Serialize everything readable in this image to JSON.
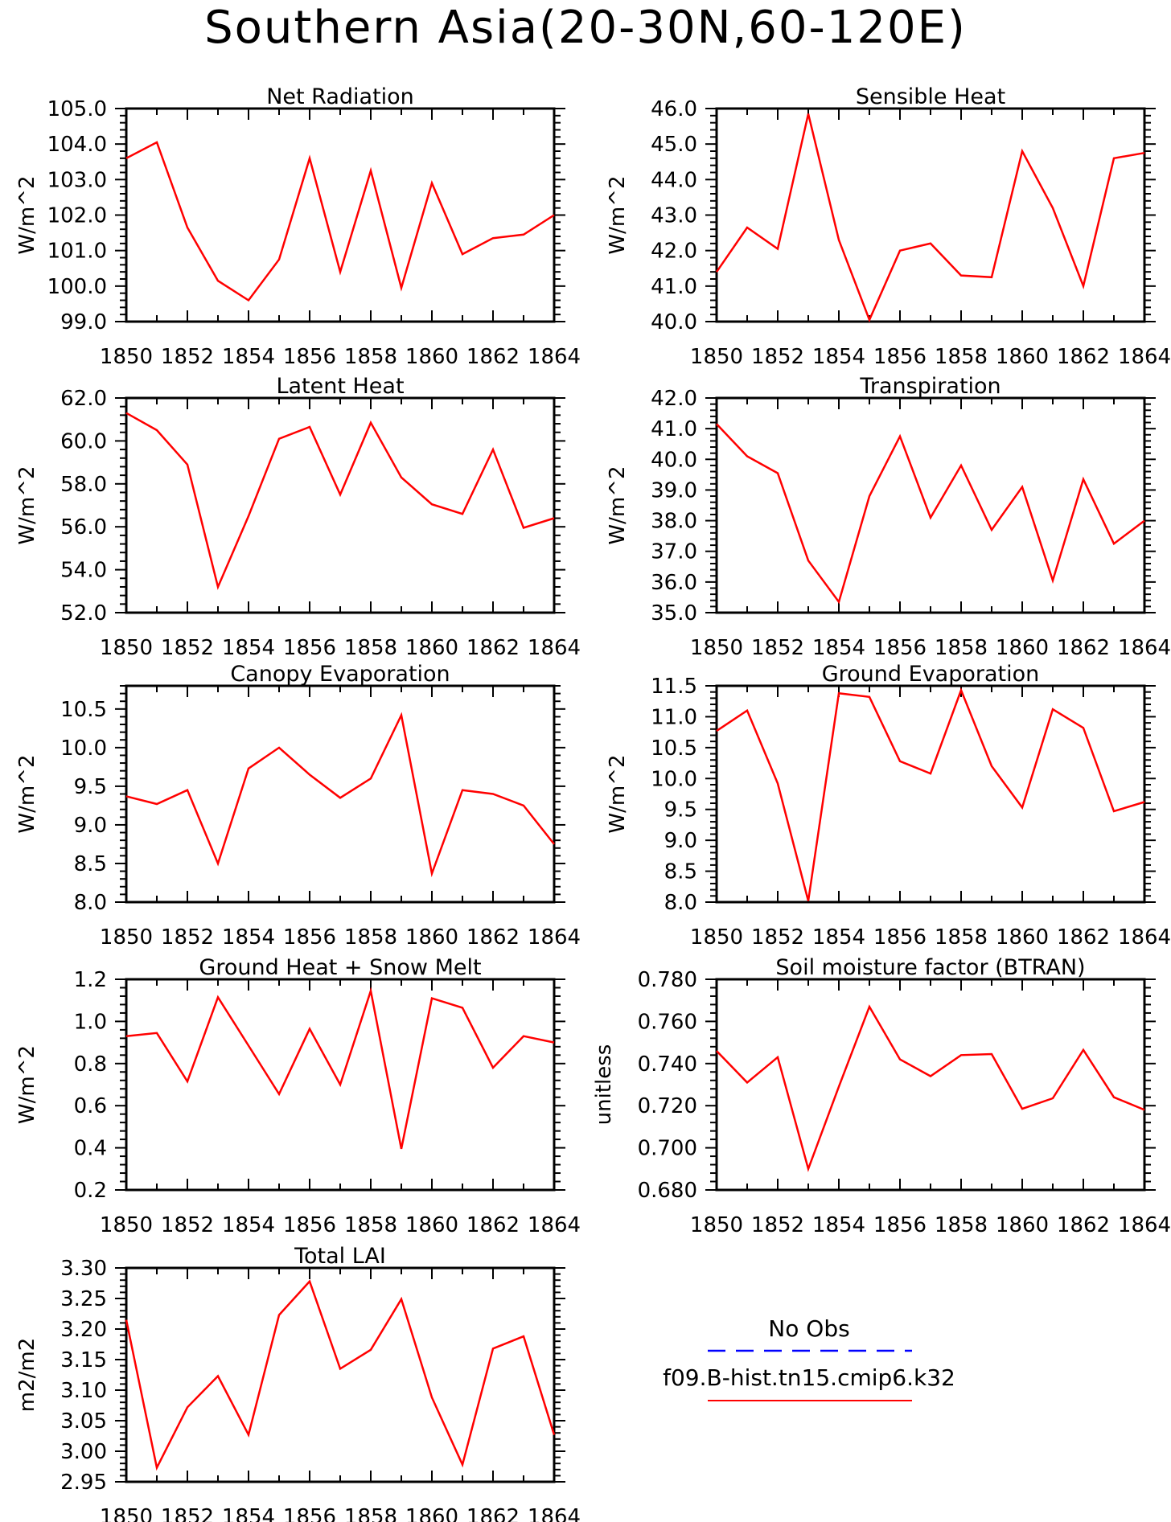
{
  "title": "Southern Asia(20-30N,60-120E)",
  "colors": {
    "series": "#ff0000",
    "obs": "#0000ff",
    "axis": "#000000"
  },
  "legend": {
    "items": [
      {
        "label": "No Obs",
        "color": "#0000ff",
        "style": "dashed"
      },
      {
        "label": "f09.B-hist.tn15.cmip6.k32",
        "color": "#ff0000",
        "style": "solid"
      }
    ]
  },
  "chart_data": [
    {
      "type": "line",
      "title": "Net Radiation",
      "ylabel": "W/m^2",
      "x": [
        1850,
        1851,
        1852,
        1853,
        1854,
        1855,
        1856,
        1857,
        1858,
        1859,
        1860,
        1861,
        1862,
        1863,
        1864
      ],
      "xlim": [
        1850,
        1864
      ],
      "xticks": [
        "1850",
        "1852",
        "1854",
        "1856",
        "1858",
        "1860",
        "1862",
        "1864"
      ],
      "ylim": [
        99.0,
        105.0
      ],
      "yticks": [
        "99.0",
        "100.0",
        "101.0",
        "102.0",
        "103.0",
        "104.0",
        "105.0"
      ],
      "series": [
        {
          "values": [
            103.6,
            104.05,
            101.65,
            100.15,
            99.6,
            100.75,
            103.6,
            100.4,
            103.25,
            99.95,
            102.9,
            100.9,
            101.35,
            101.45,
            102.0
          ]
        }
      ]
    },
    {
      "type": "line",
      "title": "Sensible Heat",
      "ylabel": "W/m^2",
      "x": [
        1850,
        1851,
        1852,
        1853,
        1854,
        1855,
        1856,
        1857,
        1858,
        1859,
        1860,
        1861,
        1862,
        1863,
        1864
      ],
      "xlim": [
        1850,
        1864
      ],
      "xticks": [
        "1850",
        "1852",
        "1854",
        "1856",
        "1858",
        "1860",
        "1862",
        "1864"
      ],
      "ylim": [
        40.0,
        46.0
      ],
      "yticks": [
        "40.0",
        "41.0",
        "42.0",
        "43.0",
        "44.0",
        "45.0",
        "46.0"
      ],
      "series": [
        {
          "values": [
            41.4,
            42.65,
            42.05,
            45.85,
            42.3,
            40.05,
            42.0,
            42.2,
            41.3,
            41.25,
            44.8,
            43.2,
            41.0,
            44.6,
            44.75
          ]
        }
      ]
    },
    {
      "type": "line",
      "title": "Latent Heat",
      "ylabel": "W/m^2",
      "x": [
        1850,
        1851,
        1852,
        1853,
        1854,
        1855,
        1856,
        1857,
        1858,
        1859,
        1860,
        1861,
        1862,
        1863,
        1864
      ],
      "xlim": [
        1850,
        1864
      ],
      "xticks": [
        "1850",
        "1852",
        "1854",
        "1856",
        "1858",
        "1860",
        "1862",
        "1864"
      ],
      "ylim": [
        52.0,
        62.0
      ],
      "yticks": [
        "52.0",
        "54.0",
        "56.0",
        "58.0",
        "60.0",
        "62.0"
      ],
      "series": [
        {
          "values": [
            61.3,
            60.5,
            58.9,
            53.2,
            56.5,
            60.1,
            60.65,
            57.5,
            60.85,
            58.3,
            57.05,
            56.6,
            59.6,
            55.95,
            56.4
          ]
        }
      ]
    },
    {
      "type": "line",
      "title": "Transpiration",
      "ylabel": "W/m^2",
      "x": [
        1850,
        1851,
        1852,
        1853,
        1854,
        1855,
        1856,
        1857,
        1858,
        1859,
        1860,
        1861,
        1862,
        1863,
        1864
      ],
      "xlim": [
        1850,
        1864
      ],
      "xticks": [
        "1850",
        "1852",
        "1854",
        "1856",
        "1858",
        "1860",
        "1862",
        "1864"
      ],
      "ylim": [
        35.0,
        42.0
      ],
      "yticks": [
        "35.0",
        "36.0",
        "37.0",
        "38.0",
        "39.0",
        "40.0",
        "41.0",
        "42.0"
      ],
      "series": [
        {
          "values": [
            41.15,
            40.1,
            39.55,
            36.7,
            35.35,
            38.8,
            40.75,
            38.1,
            39.8,
            37.7,
            39.1,
            36.05,
            39.35,
            37.25,
            38.0
          ]
        }
      ]
    },
    {
      "type": "line",
      "title": "Canopy Evaporation",
      "ylabel": "W/m^2",
      "x": [
        1850,
        1851,
        1852,
        1853,
        1854,
        1855,
        1856,
        1857,
        1858,
        1859,
        1860,
        1861,
        1862,
        1863,
        1864
      ],
      "xlim": [
        1850,
        1864
      ],
      "xticks": [
        "1850",
        "1852",
        "1854",
        "1856",
        "1858",
        "1860",
        "1862",
        "1864"
      ],
      "ylim": [
        8.0,
        10.8
      ],
      "yticks": [
        "8.0",
        "8.5",
        "9.0",
        "9.5",
        "10.0",
        "10.5"
      ],
      "series": [
        {
          "values": [
            9.37,
            9.27,
            9.45,
            8.5,
            9.73,
            10.0,
            9.65,
            9.35,
            9.6,
            10.42,
            8.37,
            9.45,
            9.4,
            9.25,
            8.75
          ]
        }
      ]
    },
    {
      "type": "line",
      "title": "Ground Evaporation",
      "ylabel": "W/m^2",
      "x": [
        1850,
        1851,
        1852,
        1853,
        1854,
        1855,
        1856,
        1857,
        1858,
        1859,
        1860,
        1861,
        1862,
        1863,
        1864
      ],
      "xlim": [
        1850,
        1864
      ],
      "xticks": [
        "1850",
        "1852",
        "1854",
        "1856",
        "1858",
        "1860",
        "1862",
        "1864"
      ],
      "ylim": [
        8.0,
        11.5
      ],
      "yticks": [
        "8.0",
        "8.5",
        "9.0",
        "9.5",
        "10.0",
        "10.5",
        "11.0",
        "11.5"
      ],
      "series": [
        {
          "values": [
            10.77,
            11.1,
            9.92,
            8.02,
            11.38,
            11.32,
            10.28,
            10.08,
            11.43,
            10.2,
            9.53,
            11.12,
            10.82,
            9.47,
            9.62
          ]
        }
      ]
    },
    {
      "type": "line",
      "title": "Ground Heat + Snow Melt",
      "ylabel": "W/m^2",
      "x": [
        1850,
        1851,
        1852,
        1853,
        1854,
        1855,
        1856,
        1857,
        1858,
        1859,
        1860,
        1861,
        1862,
        1863,
        1864
      ],
      "xlim": [
        1850,
        1864
      ],
      "xticks": [
        "1850",
        "1852",
        "1854",
        "1856",
        "1858",
        "1860",
        "1862",
        "1864"
      ],
      "ylim": [
        0.2,
        1.2
      ],
      "yticks": [
        "0.2",
        "0.4",
        "0.6",
        "0.8",
        "1.0",
        "1.2"
      ],
      "series": [
        {
          "values": [
            0.93,
            0.945,
            0.715,
            1.115,
            0.885,
            0.655,
            0.965,
            0.7,
            1.145,
            0.395,
            1.11,
            1.065,
            0.78,
            0.93,
            0.9
          ]
        }
      ]
    },
    {
      "type": "line",
      "title": "Soil moisture factor (BTRAN)",
      "ylabel": "unitless",
      "x": [
        1850,
        1851,
        1852,
        1853,
        1854,
        1855,
        1856,
        1857,
        1858,
        1859,
        1860,
        1861,
        1862,
        1863,
        1864
      ],
      "xlim": [
        1850,
        1864
      ],
      "xticks": [
        "1850",
        "1852",
        "1854",
        "1856",
        "1858",
        "1860",
        "1862",
        "1864"
      ],
      "ylim": [
        0.68,
        0.78
      ],
      "yticks": [
        "0.680",
        "0.700",
        "0.720",
        "0.740",
        "0.760",
        "0.780"
      ],
      "series": [
        {
          "values": [
            0.746,
            0.731,
            0.743,
            0.69,
            0.729,
            0.767,
            0.742,
            0.734,
            0.744,
            0.7445,
            0.7185,
            0.7235,
            0.7465,
            0.724,
            0.718
          ]
        }
      ]
    },
    {
      "type": "line",
      "title": "Total LAI",
      "ylabel": "m2/m2",
      "x": [
        1850,
        1851,
        1852,
        1853,
        1854,
        1855,
        1856,
        1857,
        1858,
        1859,
        1860,
        1861,
        1862,
        1863,
        1864
      ],
      "xlim": [
        1850,
        1864
      ],
      "xticks": [
        "1850",
        "1852",
        "1854",
        "1856",
        "1858",
        "1860",
        "1862",
        "1864"
      ],
      "ylim": [
        2.95,
        3.3
      ],
      "yticks": [
        "2.95",
        "3.00",
        "3.05",
        "3.10",
        "3.15",
        "3.20",
        "3.25",
        "3.30"
      ],
      "series": [
        {
          "values": [
            3.215,
            2.973,
            3.072,
            3.123,
            3.027,
            3.223,
            3.278,
            3.135,
            3.166,
            3.249,
            3.088,
            2.978,
            3.168,
            3.188,
            3.027
          ]
        }
      ]
    }
  ]
}
